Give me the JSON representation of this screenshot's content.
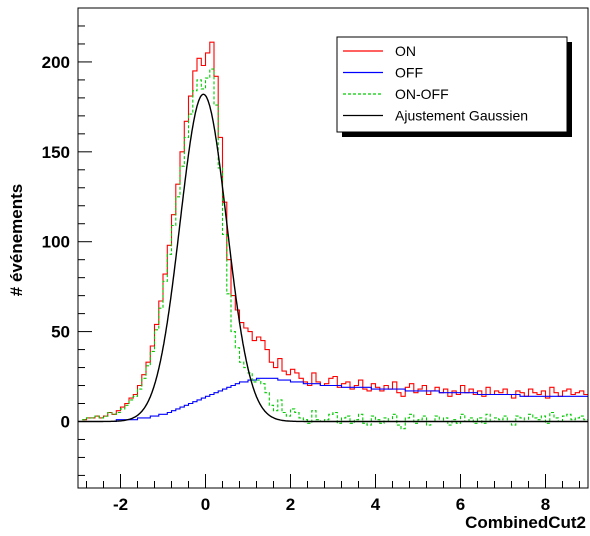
{
  "chart_data": {
    "type": "line",
    "xlabel": "CombinedCut2",
    "ylabel": "# événements",
    "xlim": [
      -3.0,
      9.0
    ],
    "ylim": [
      -37,
      230
    ],
    "x_ticks": [
      -2,
      0,
      2,
      4,
      6,
      8
    ],
    "y_ticks": [
      0,
      50,
      100,
      150,
      200
    ],
    "grid": false,
    "legend_position": "top-right",
    "bin_width": 0.1,
    "x_start": -2.9,
    "series": [
      {
        "name": "ON",
        "color": "#ff0000",
        "style": "solid-step",
        "x": [
          -2.9,
          -2.8,
          -2.7,
          -2.6,
          -2.5,
          -2.4,
          -2.3,
          -2.2,
          -2.1,
          -2.0,
          -1.9,
          -1.8,
          -1.7,
          -1.6,
          -1.5,
          -1.4,
          -1.3,
          -1.2,
          -1.1,
          -1.0,
          -0.9,
          -0.8,
          -0.7,
          -0.6,
          -0.5,
          -0.4,
          -0.3,
          -0.2,
          -0.1,
          0.0,
          0.1,
          0.2,
          0.3,
          0.4,
          0.5,
          0.6,
          0.7,
          0.8,
          0.9,
          1.0,
          1.1,
          1.2,
          1.3,
          1.4,
          1.5,
          1.6,
          1.7,
          1.8,
          1.9,
          2.0,
          2.1,
          2.2,
          2.3,
          2.4,
          2.5,
          2.6,
          2.7,
          2.8,
          2.9,
          3.0,
          3.1,
          3.2,
          3.3,
          3.4,
          3.5,
          3.6,
          3.7,
          3.8,
          3.9,
          4.0,
          4.1,
          4.2,
          4.3,
          4.4,
          4.5,
          4.6,
          4.7,
          4.8,
          4.9,
          5.0,
          5.1,
          5.2,
          5.3,
          5.4,
          5.5,
          5.6,
          5.7,
          5.8,
          5.9,
          6.0,
          6.1,
          6.2,
          6.3,
          6.4,
          6.5,
          6.6,
          6.7,
          6.8,
          6.9,
          7.0,
          7.1,
          7.2,
          7.3,
          7.4,
          7.5,
          7.6,
          7.7,
          7.8,
          7.9,
          8.0,
          8.1,
          8.2,
          8.3,
          8.4,
          8.5,
          8.6,
          8.7,
          8.8,
          8.9
        ],
        "values": [
          1,
          2,
          2,
          3,
          2,
          3,
          5,
          4,
          6,
          8,
          10,
          13,
          15,
          20,
          26,
          33,
          42,
          54,
          67,
          82,
          98,
          115,
          132,
          150,
          167,
          181,
          195,
          202,
          198,
          205,
          211,
          192,
          158,
          122,
          90,
          70,
          62,
          55,
          52,
          50,
          45,
          47,
          45,
          40,
          33,
          30,
          35,
          28,
          26,
          29,
          27,
          24,
          22,
          20,
          27,
          22,
          20,
          21,
          24,
          25,
          19,
          21,
          22,
          18,
          20,
          23,
          18,
          17,
          21,
          19,
          17,
          20,
          18,
          22,
          16,
          14,
          19,
          21,
          16,
          18,
          20,
          15,
          17,
          19,
          16,
          18,
          14,
          17,
          15,
          20,
          16,
          18,
          15,
          17,
          14,
          19,
          15,
          17,
          16,
          18,
          15,
          13,
          17,
          16,
          14,
          18,
          16,
          15,
          17,
          13,
          19,
          16,
          14,
          17,
          18,
          15,
          16,
          17,
          15
        ]
      },
      {
        "name": "OFF",
        "color": "#0000ff",
        "style": "solid-step",
        "x": [
          -2.9,
          -2.8,
          -2.7,
          -2.6,
          -2.5,
          -2.4,
          -2.3,
          -2.2,
          -2.1,
          -2.0,
          -1.9,
          -1.8,
          -1.7,
          -1.6,
          -1.5,
          -1.4,
          -1.3,
          -1.2,
          -1.1,
          -1.0,
          -0.9,
          -0.8,
          -0.7,
          -0.6,
          -0.5,
          -0.4,
          -0.3,
          -0.2,
          -0.1,
          0.0,
          0.1,
          0.2,
          0.3,
          0.4,
          0.5,
          0.6,
          0.7,
          0.8,
          0.9,
          1.0,
          1.1,
          1.2,
          1.3,
          1.4,
          1.5,
          1.6,
          1.7,
          1.8,
          1.9,
          2.0,
          2.1,
          2.2,
          2.3,
          2.4,
          2.5,
          2.6,
          2.7,
          2.8,
          2.9,
          3.0,
          3.1,
          3.2,
          3.3,
          3.4,
          3.5,
          3.6,
          3.7,
          3.8,
          3.9,
          4.0,
          4.1,
          4.2,
          4.3,
          4.4,
          4.5,
          4.6,
          4.7,
          4.8,
          4.9,
          5.0,
          5.1,
          5.2,
          5.3,
          5.4,
          5.5,
          5.6,
          5.7,
          5.8,
          5.9,
          6.0,
          6.1,
          6.2,
          6.3,
          6.4,
          6.5,
          6.6,
          6.7,
          6.8,
          6.9,
          7.0,
          7.1,
          7.2,
          7.3,
          7.4,
          7.5,
          7.6,
          7.7,
          7.8,
          7.9,
          8.0,
          8.1,
          8.2,
          8.3,
          8.4,
          8.5,
          8.6,
          8.7,
          8.8,
          8.9
        ],
        "values": [
          0,
          0,
          0,
          0,
          0,
          0,
          0,
          0,
          1,
          1,
          1,
          1,
          1,
          2,
          2,
          2,
          3,
          3,
          4,
          4,
          5,
          6,
          7,
          8,
          9,
          10,
          11,
          12,
          13,
          14,
          15,
          16,
          17,
          18,
          19,
          20,
          21,
          22,
          22,
          23,
          23,
          24,
          24,
          24,
          24,
          24,
          23,
          23,
          23,
          22,
          22,
          22,
          21,
          21,
          21,
          21,
          20,
          20,
          20,
          20,
          20,
          19,
          19,
          19,
          19,
          19,
          19,
          19,
          18,
          18,
          18,
          18,
          18,
          18,
          18,
          18,
          17,
          17,
          17,
          17,
          17,
          17,
          17,
          17,
          16,
          16,
          16,
          16,
          16,
          16,
          16,
          16,
          16,
          15,
          15,
          15,
          15,
          15,
          15,
          15,
          15,
          15,
          15,
          14,
          14,
          14,
          14,
          14,
          14,
          14,
          14,
          14,
          14,
          14,
          14,
          14,
          14,
          14,
          14
        ]
      },
      {
        "name": "ON-OFF",
        "color": "#00cc00",
        "style": "dashed-step",
        "x": [
          -2.9,
          -2.8,
          -2.7,
          -2.6,
          -2.5,
          -2.4,
          -2.3,
          -2.2,
          -2.1,
          -2.0,
          -1.9,
          -1.8,
          -1.7,
          -1.6,
          -1.5,
          -1.4,
          -1.3,
          -1.2,
          -1.1,
          -1.0,
          -0.9,
          -0.8,
          -0.7,
          -0.6,
          -0.5,
          -0.4,
          -0.3,
          -0.2,
          -0.1,
          0.0,
          0.1,
          0.2,
          0.3,
          0.4,
          0.5,
          0.6,
          0.7,
          0.8,
          0.9,
          1.0,
          1.1,
          1.2,
          1.3,
          1.4,
          1.5,
          1.6,
          1.7,
          1.8,
          1.9,
          2.0,
          2.1,
          2.2,
          2.3,
          2.4,
          2.5,
          2.6,
          2.7,
          2.8,
          2.9,
          3.0,
          3.1,
          3.2,
          3.3,
          3.4,
          3.5,
          3.6,
          3.7,
          3.8,
          3.9,
          4.0,
          4.1,
          4.2,
          4.3,
          4.4,
          4.5,
          4.6,
          4.7,
          4.8,
          4.9,
          5.0,
          5.1,
          5.2,
          5.3,
          5.4,
          5.5,
          5.6,
          5.7,
          5.8,
          5.9,
          6.0,
          6.1,
          6.2,
          6.3,
          6.4,
          6.5,
          6.6,
          6.7,
          6.8,
          6.9,
          7.0,
          7.1,
          7.2,
          7.3,
          7.4,
          7.5,
          7.6,
          7.7,
          7.8,
          7.9,
          8.0,
          8.1,
          8.2,
          8.3,
          8.4,
          8.5,
          8.6,
          8.7,
          8.8,
          8.9
        ],
        "values": [
          1,
          2,
          2,
          3,
          2,
          3,
          5,
          4,
          5,
          7,
          9,
          12,
          14,
          18,
          24,
          31,
          39,
          51,
          63,
          78,
          93,
          109,
          125,
          142,
          158,
          171,
          184,
          190,
          185,
          191,
          196,
          176,
          141,
          104,
          71,
          50,
          41,
          33,
          30,
          27,
          22,
          23,
          21,
          16,
          9,
          6,
          12,
          5,
          3,
          7,
          5,
          2,
          1,
          -1,
          6,
          1,
          0,
          1,
          4,
          5,
          -1,
          2,
          3,
          -1,
          1,
          4,
          -1,
          -2,
          3,
          1,
          -1,
          2,
          0,
          4,
          -2,
          -4,
          2,
          4,
          -1,
          1,
          3,
          -2,
          0,
          3,
          0,
          2,
          -2,
          1,
          -1,
          4,
          0,
          2,
          -1,
          2,
          -1,
          4,
          0,
          2,
          1,
          3,
          0,
          -2,
          3,
          2,
          0,
          4,
          2,
          1,
          3,
          -1,
          5,
          2,
          0,
          3,
          4,
          1,
          2,
          3,
          1
        ]
      },
      {
        "name": "Ajustement Gaussien",
        "color": "#000000",
        "style": "smooth-curve",
        "fit_mean": -0.05,
        "fit_sigma": 0.55,
        "fit_amplitude": 182
      }
    ]
  }
}
